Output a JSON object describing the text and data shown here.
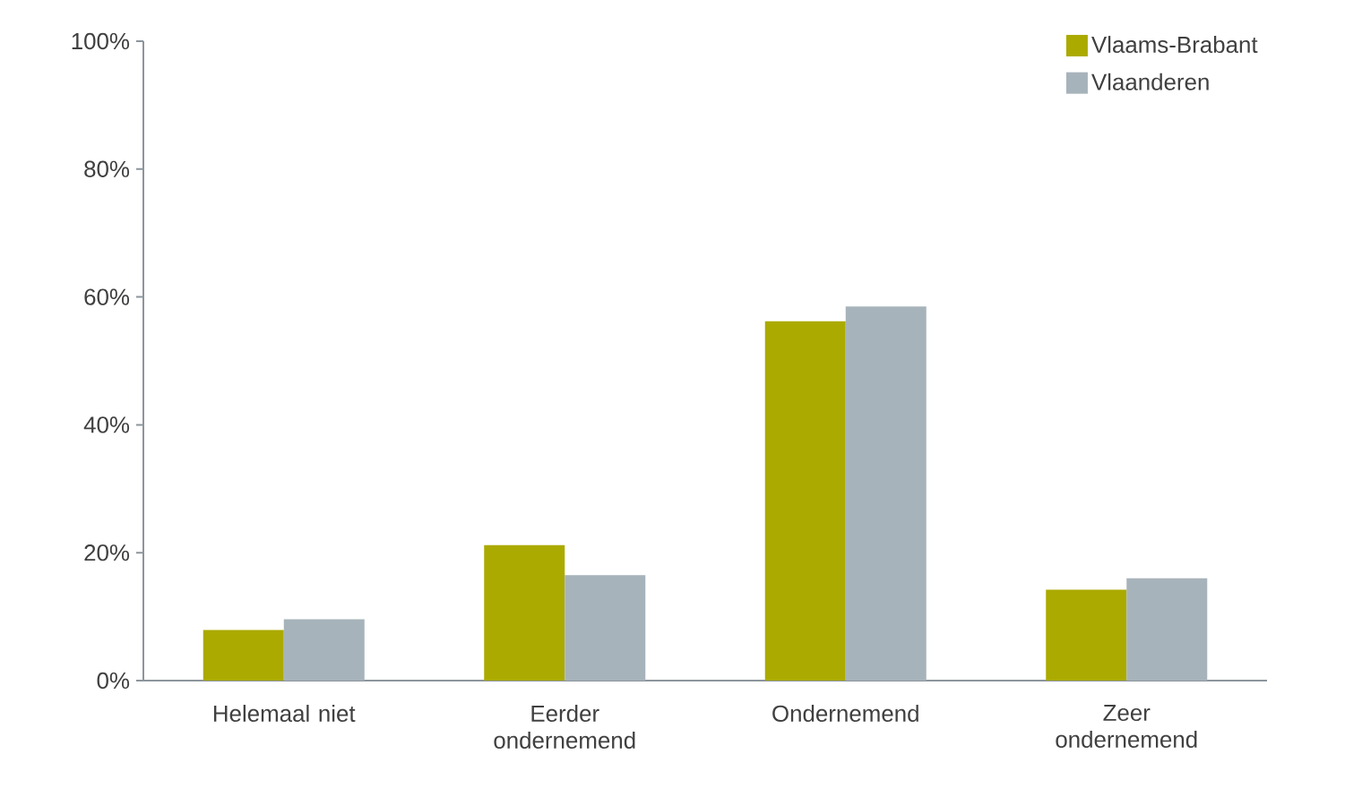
{
  "chart_data": {
    "type": "bar",
    "categories": [
      "Helemaal niet",
      "Eerder ondernemend",
      "Ondernemend",
      "Zeer ondernemend"
    ],
    "series": [
      {
        "name": "Vlaams-Brabant",
        "color": "#abaa00",
        "values": [
          7.9,
          21.2,
          56.2,
          14.2
        ]
      },
      {
        "name": "Vlaanderen",
        "color": "#a7b3bb",
        "values": [
          9.6,
          16.5,
          58.5,
          16.0
        ]
      }
    ],
    "ylim": [
      0,
      100
    ],
    "yticks": [
      {
        "value": 0,
        "label": "0%"
      },
      {
        "value": 20,
        "label": "20%"
      },
      {
        "value": 40,
        "label": "40%"
      },
      {
        "value": 60,
        "label": "60%"
      },
      {
        "value": 80,
        "label": "80%"
      },
      {
        "value": 100,
        "label": "100%"
      }
    ],
    "grid": false,
    "legend": "top right"
  }
}
